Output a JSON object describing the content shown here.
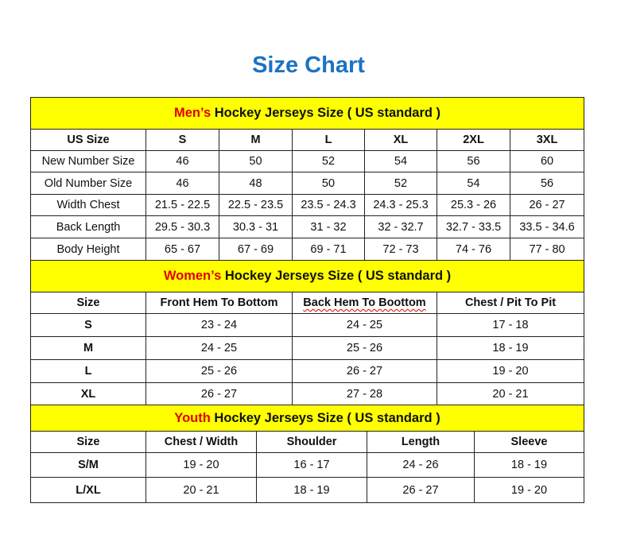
{
  "title": "Size Chart",
  "colors": {
    "title": "#1a73c2",
    "band": "#ffff00",
    "highlight": "#e00000"
  },
  "men": {
    "heading_highlight": "Men’s",
    "heading_rest": " Hockey Jerseys Size ( US standard )",
    "headers": [
      "US Size",
      "S",
      "M",
      "L",
      "XL",
      "2XL",
      "3XL"
    ],
    "rows": [
      [
        "New Number Size",
        "46",
        "50",
        "52",
        "54",
        "56",
        "60"
      ],
      [
        "Old Number Size",
        "46",
        "48",
        "50",
        "52",
        "54",
        "56"
      ],
      [
        "Width Chest",
        "21.5 - 22.5",
        "22.5 - 23.5",
        "23.5 - 24.3",
        "24.3 - 25.3",
        "25.3 - 26",
        "26 - 27"
      ],
      [
        "Back Length",
        "29.5 - 30.3",
        "30.3 - 31",
        "31 - 32",
        "32 - 32.7",
        "32.7 - 33.5",
        "33.5 - 34.6"
      ],
      [
        "Body Height",
        "65 - 67",
        "67 - 69",
        "69 - 71",
        "72 - 73",
        "74 - 76",
        "77 - 80"
      ]
    ]
  },
  "women": {
    "heading_highlight": "Women’s",
    "heading_rest": " Hockey Jerseys Size ( US standard )",
    "headers": [
      "Size",
      "Front Hem To Bottom",
      "Back Hem To Boottom",
      "Chest / Pit To Pit"
    ],
    "rows": [
      [
        "S",
        "23 - 24",
        "24 - 25",
        "17 - 18"
      ],
      [
        "M",
        "24 - 25",
        "25 - 26",
        "18 - 19"
      ],
      [
        "L",
        "25 - 26",
        "26 - 27",
        "19 - 20"
      ],
      [
        "XL",
        "26 - 27",
        "27 - 28",
        "20 - 21"
      ]
    ]
  },
  "youth": {
    "heading_highlight": "Youth",
    "heading_rest": " Hockey Jerseys Size ( US standard )",
    "headers": [
      "Size",
      "Chest / Width",
      "Shoulder",
      "Length",
      "Sleeve"
    ],
    "rows": [
      [
        "S/M",
        "19 - 20",
        "16 - 17",
        "24 - 26",
        "18 - 19"
      ],
      [
        "L/XL",
        "20 - 21",
        "18 - 19",
        "26 - 27",
        "19 - 20"
      ]
    ]
  }
}
